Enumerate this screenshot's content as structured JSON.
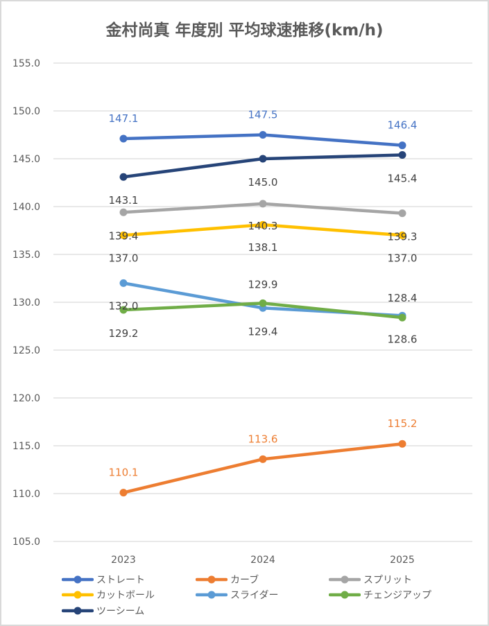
{
  "chart_data": {
    "type": "line",
    "title": "金村尚真 年度別 平均球速推移(km/h)",
    "xlabel": "",
    "ylabel": "",
    "categories": [
      "2023",
      "2024",
      "2025"
    ],
    "ylim": [
      105.0,
      155.0
    ],
    "yticks": [
      "105.0",
      "110.0",
      "115.0",
      "120.0",
      "125.0",
      "130.0",
      "135.0",
      "140.0",
      "145.0",
      "150.0",
      "155.0"
    ],
    "grid": true,
    "legend_position": "bottom",
    "series": [
      {
        "name": "ストレート",
        "color": "#4472C4",
        "values": [
          147.1,
          147.5,
          146.4
        ],
        "labels": [
          "147.1",
          "147.5",
          "146.4"
        ],
        "label_color": "#4472C4"
      },
      {
        "name": "カーブ",
        "color": "#ED7D31",
        "values": [
          110.1,
          113.6,
          115.2
        ],
        "labels": [
          "110.1",
          "113.6",
          "115.2"
        ],
        "label_color": "#ED7D31"
      },
      {
        "name": "スプリット",
        "color": "#A5A5A5",
        "values": [
          139.4,
          140.3,
          139.3
        ],
        "labels": [
          "139.4",
          "140.3",
          "139.3"
        ],
        "label_color": "#404040"
      },
      {
        "name": "カットボール",
        "color": "#FFC000",
        "values": [
          137.0,
          138.1,
          137.0
        ],
        "labels": [
          "137.0",
          "138.1",
          "137.0"
        ],
        "label_color": "#404040"
      },
      {
        "name": "スライダー",
        "color": "#5B9BD5",
        "values": [
          132.0,
          129.4,
          128.6
        ],
        "labels": [
          "132.0",
          "129.4",
          "128.6"
        ],
        "label_color": "#404040"
      },
      {
        "name": "チェンジアップ",
        "color": "#70AD47",
        "values": [
          129.2,
          129.9,
          128.4
        ],
        "labels": [
          "129.2",
          "129.9",
          "128.4"
        ],
        "label_color": "#404040"
      },
      {
        "name": "ツーシーム",
        "color": "#264478",
        "values": [
          143.1,
          145.0,
          145.4
        ],
        "labels": [
          "143.1",
          "145.0",
          "145.4"
        ],
        "label_color": "#404040"
      }
    ]
  }
}
